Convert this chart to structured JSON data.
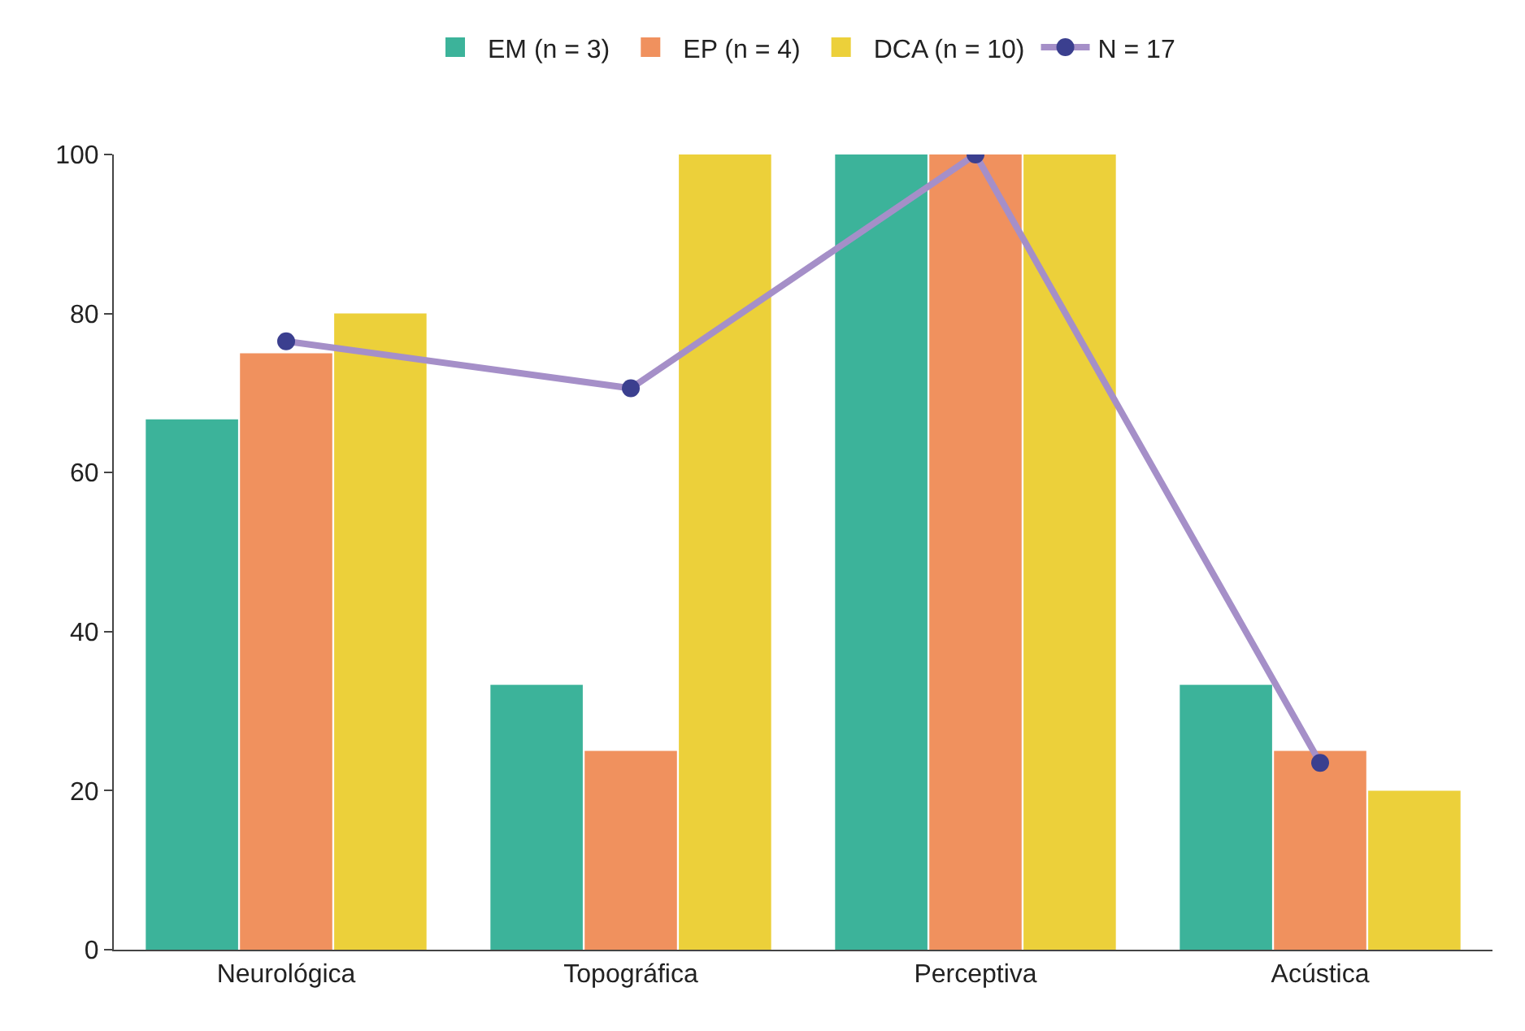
{
  "chart_data": {
    "type": "bar",
    "categories": [
      "Neurológica",
      "Topográfica",
      "Perceptiva",
      "Acústica"
    ],
    "series": [
      {
        "name": "EM (n = 3)",
        "color": "#3cb39a",
        "values": [
          66.7,
          33.3,
          100,
          33.3
        ]
      },
      {
        "name": "EP (n = 4)",
        "color": "#f0915e",
        "values": [
          75,
          25,
          100,
          25
        ]
      },
      {
        "name": "DCA (n = 10)",
        "color": "#ecd03a",
        "values": [
          80,
          100,
          100,
          20
        ]
      },
      {
        "name": "N = 17",
        "type": "line",
        "color": "#a58fc8",
        "marker": "circle",
        "values": [
          76.5,
          70.6,
          100,
          23.5
        ]
      }
    ],
    "ylim": [
      0,
      100
    ],
    "yticks": [
      0,
      20,
      40,
      60,
      80,
      100
    ],
    "legend": "top"
  }
}
